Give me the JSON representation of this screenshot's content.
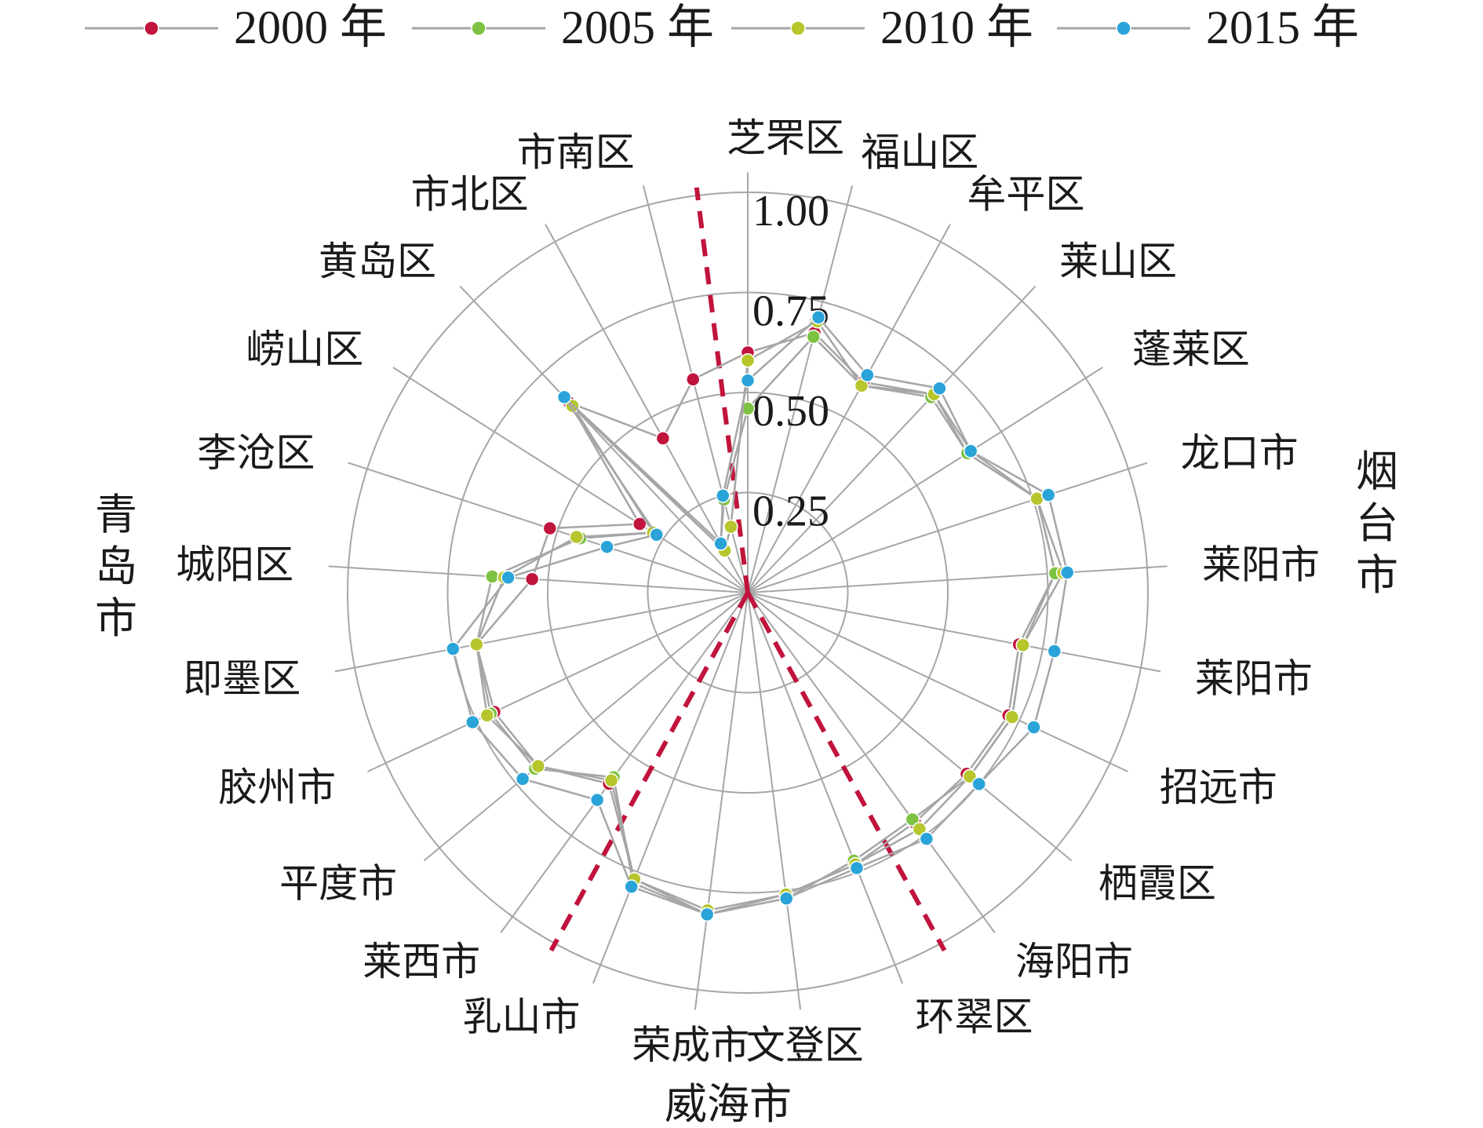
{
  "chart_data": {
    "type": "radar",
    "title": "",
    "rmax": 1.0,
    "ticks": [
      "0.25",
      "0.50",
      "0.75",
      "1.00"
    ],
    "tick_values": [
      0.25,
      0.5,
      0.75,
      1.0
    ],
    "categories": [
      "芝罘区",
      "福山区",
      "牟平区",
      "莱山区",
      "蓬莱区",
      "龙口市",
      "莱阳市",
      "莱阳市",
      "招远市",
      "栖霞区",
      "海阳市",
      "环翠区",
      "文登区",
      "荣成市",
      "乳山市",
      "莱西市",
      "平度市",
      "胶州市",
      "即墨区",
      "城阳区",
      "李沧区",
      "崂山区",
      "黄岛区",
      "市北区",
      "市南区"
    ],
    "groups": [
      {
        "name": "烟台市",
        "start": 0,
        "end": 10
      },
      {
        "name": "威海市",
        "start": 11,
        "end": 14
      },
      {
        "name": "青岛市",
        "start": 15,
        "end": 24
      }
    ],
    "series": [
      {
        "name": "2000 年",
        "color": "#c0143c",
        "values": [
          0.6,
          0.67,
          0.6,
          0.68,
          0.65,
          0.76,
          0.77,
          0.69,
          0.72,
          0.71,
          0.71,
          0.73,
          0.76,
          0.81,
          0.77,
          0.59,
          0.68,
          0.7,
          0.69,
          0.54,
          0.52,
          0.32,
          0.65,
          0.44,
          0.55
        ]
      },
      {
        "name": "2005 年",
        "color": "#7dc242",
        "values": [
          0.46,
          0.66,
          0.59,
          0.67,
          0.65,
          0.76,
          0.77,
          0.7,
          0.73,
          0.72,
          0.7,
          0.72,
          0.77,
          0.81,
          0.78,
          0.57,
          0.69,
          0.71,
          0.69,
          0.64,
          0.44,
          0.28,
          0.64,
          0.14,
          0.24
        ]
      },
      {
        "name": "2010 年",
        "color": "#b6c62c",
        "values": [
          0.58,
          0.7,
          0.59,
          0.68,
          0.66,
          0.76,
          0.79,
          0.7,
          0.73,
          0.72,
          0.73,
          0.73,
          0.76,
          0.8,
          0.77,
          0.58,
          0.68,
          0.72,
          0.69,
          0.61,
          0.45,
          0.28,
          0.64,
          0.12,
          0.17
        ]
      },
      {
        "name": "2015 年",
        "color": "#2aa4d8",
        "values": [
          0.53,
          0.71,
          0.62,
          0.7,
          0.66,
          0.79,
          0.8,
          0.78,
          0.79,
          0.75,
          0.76,
          0.74,
          0.77,
          0.81,
          0.79,
          0.64,
          0.73,
          0.76,
          0.75,
          0.6,
          0.37,
          0.27,
          0.67,
          0.14,
          0.25
        ]
      }
    ],
    "divider_color": "#c0143c",
    "legend": "top",
    "grid": true
  }
}
